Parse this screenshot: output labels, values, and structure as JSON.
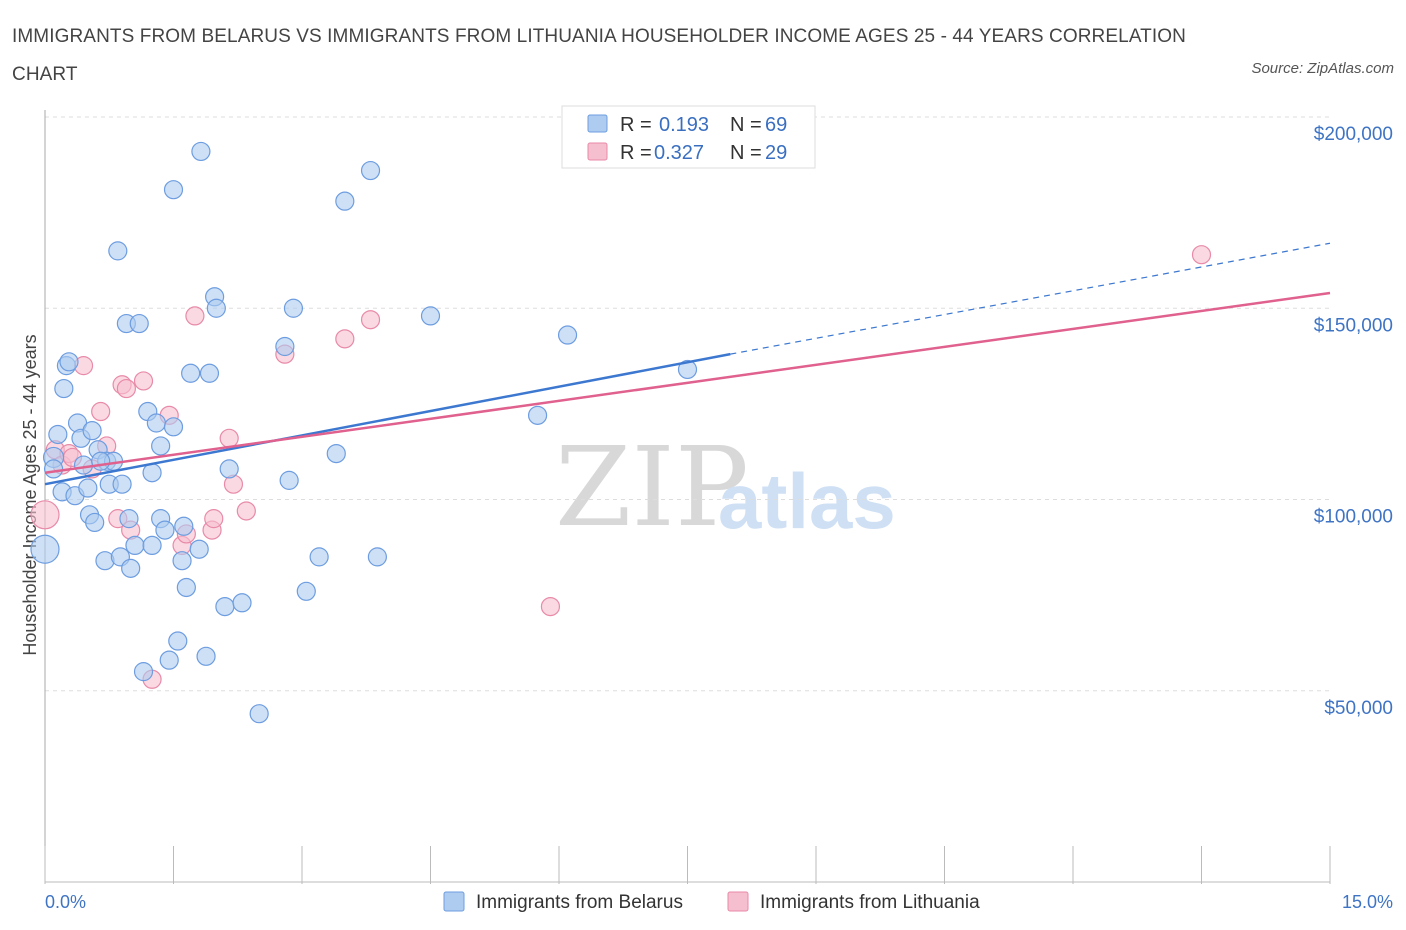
{
  "title": "IMMIGRANTS FROM BELARUS VS IMMIGRANTS FROM LITHUANIA HOUSEHOLDER INCOME AGES 25 - 44 YEARS CORRELATION CHART",
  "source": "Source: ZipAtlas.com",
  "colors": {
    "belarus_fill": "#aecbf0",
    "belarus_stroke": "#6d9de0",
    "belarus_line": "#3d78d0",
    "lithuania_fill": "#f6bfd0",
    "lithuania_stroke": "#e88aa8",
    "lithuania_line": "#e0608e",
    "grid": "#dddddd",
    "axis_text": "#3f74c4"
  },
  "legend": {
    "r_label": "R =",
    "n_label": "N =",
    "belarus_r": "0.193",
    "belarus_n": "69",
    "lithuania_r": "0.327",
    "lithuania_n": "29"
  },
  "watermark": {
    "zip": "ZIP",
    "atlas": "atlas"
  },
  "chart_data": {
    "type": "scatter",
    "xlabel": "",
    "ylabel": "Householder Income Ages 25 - 44 years",
    "xlim": [
      0,
      15
    ],
    "ylim": [
      0,
      200000
    ],
    "x_tick_labels": [
      "0.0%",
      "15.0%"
    ],
    "y_ticks": [
      {
        "value": 50000,
        "label": "$50,000"
      },
      {
        "value": 100000,
        "label": "$100,000"
      },
      {
        "value": 150000,
        "label": "$150,000"
      },
      {
        "value": 200000,
        "label": "$200,000"
      }
    ],
    "series": [
      {
        "name": "Immigrants from Belarus",
        "r": 0.193,
        "n": 69,
        "trend": {
          "x0": 0,
          "y0": 104000,
          "x1": 8.0,
          "y1": 138000,
          "x_dash_end": 15,
          "y_dash_end": 167000
        },
        "points": [
          [
            0.0,
            87000,
            14
          ],
          [
            0.1,
            111000,
            10
          ],
          [
            0.15,
            117000,
            9
          ],
          [
            0.1,
            108000,
            9
          ],
          [
            0.2,
            102000,
            9
          ],
          [
            0.22,
            129000,
            9
          ],
          [
            0.25,
            135000,
            9
          ],
          [
            0.28,
            136000,
            9
          ],
          [
            0.35,
            101000,
            9
          ],
          [
            0.38,
            120000,
            9
          ],
          [
            0.42,
            116000,
            9
          ],
          [
            0.45,
            109000,
            9
          ],
          [
            0.5,
            103000,
            9
          ],
          [
            0.52,
            96000,
            9
          ],
          [
            0.55,
            118000,
            9
          ],
          [
            0.58,
            94000,
            9
          ],
          [
            0.62,
            113000,
            9
          ],
          [
            0.7,
            84000,
            9
          ],
          [
            0.72,
            110000,
            9
          ],
          [
            0.75,
            104000,
            9
          ],
          [
            0.8,
            110000,
            9
          ],
          [
            0.85,
            165000,
            9
          ],
          [
            0.88,
            85000,
            9
          ],
          [
            0.9,
            104000,
            9
          ],
          [
            0.95,
            146000,
            9
          ],
          [
            0.98,
            95000,
            9
          ],
          [
            1.0,
            82000,
            9
          ],
          [
            1.05,
            88000,
            9
          ],
          [
            1.1,
            146000,
            9
          ],
          [
            1.15,
            55000,
            9
          ],
          [
            1.2,
            123000,
            9
          ],
          [
            1.25,
            88000,
            9
          ],
          [
            1.25,
            107000,
            9
          ],
          [
            1.3,
            120000,
            9
          ],
          [
            1.35,
            95000,
            9
          ],
          [
            1.35,
            114000,
            9
          ],
          [
            1.4,
            92000,
            9
          ],
          [
            1.45,
            58000,
            9
          ],
          [
            1.5,
            119000,
            9
          ],
          [
            1.5,
            181000,
            9
          ],
          [
            1.55,
            63000,
            9
          ],
          [
            1.6,
            84000,
            9
          ],
          [
            1.62,
            93000,
            9
          ],
          [
            1.65,
            77000,
            9
          ],
          [
            1.7,
            133000,
            9
          ],
          [
            1.8,
            87000,
            9
          ],
          [
            1.82,
            191000,
            9
          ],
          [
            1.88,
            59000,
            9
          ],
          [
            1.92,
            133000,
            9
          ],
          [
            1.98,
            153000,
            9
          ],
          [
            2.0,
            150000,
            9
          ],
          [
            2.1,
            72000,
            9
          ],
          [
            2.15,
            108000,
            9
          ],
          [
            2.3,
            73000,
            9
          ],
          [
            2.5,
            44000,
            9
          ],
          [
            2.8,
            140000,
            9
          ],
          [
            2.85,
            105000,
            9
          ],
          [
            2.9,
            150000,
            9
          ],
          [
            3.05,
            76000,
            9
          ],
          [
            3.2,
            85000,
            9
          ],
          [
            3.4,
            112000,
            9
          ],
          [
            3.5,
            178000,
            9
          ],
          [
            3.8,
            186000,
            9
          ],
          [
            3.88,
            85000,
            9
          ],
          [
            4.5,
            148000,
            9
          ],
          [
            5.75,
            122000,
            9
          ],
          [
            6.1,
            143000,
            9
          ],
          [
            7.5,
            134000,
            9
          ],
          [
            0.65,
            110000,
            9
          ]
        ]
      },
      {
        "name": "Immigrants from Lithuania",
        "r": 0.327,
        "n": 29,
        "trend": {
          "x0": 0,
          "y0": 107000,
          "x1": 15,
          "y1": 154000
        },
        "points": [
          [
            0.0,
            96000,
            14
          ],
          [
            0.12,
            113000,
            9
          ],
          [
            0.2,
            109000,
            9
          ],
          [
            0.28,
            112000,
            9
          ],
          [
            0.32,
            111000,
            9
          ],
          [
            0.45,
            135000,
            9
          ],
          [
            0.55,
            108000,
            9
          ],
          [
            0.65,
            123000,
            9
          ],
          [
            0.72,
            114000,
            9
          ],
          [
            0.85,
            95000,
            9
          ],
          [
            0.9,
            130000,
            9
          ],
          [
            0.95,
            129000,
            9
          ],
          [
            1.0,
            92000,
            9
          ],
          [
            1.15,
            131000,
            9
          ],
          [
            1.25,
            53000,
            9
          ],
          [
            1.45,
            122000,
            9
          ],
          [
            1.6,
            88000,
            9
          ],
          [
            1.65,
            91000,
            9
          ],
          [
            1.75,
            148000,
            9
          ],
          [
            1.95,
            92000,
            9
          ],
          [
            1.97,
            95000,
            9
          ],
          [
            2.15,
            116000,
            9
          ],
          [
            2.2,
            104000,
            9
          ],
          [
            2.35,
            97000,
            9
          ],
          [
            2.8,
            138000,
            9
          ],
          [
            3.5,
            142000,
            9
          ],
          [
            3.8,
            147000,
            9
          ],
          [
            5.9,
            72000,
            9
          ],
          [
            13.5,
            164000,
            9
          ]
        ]
      }
    ]
  }
}
